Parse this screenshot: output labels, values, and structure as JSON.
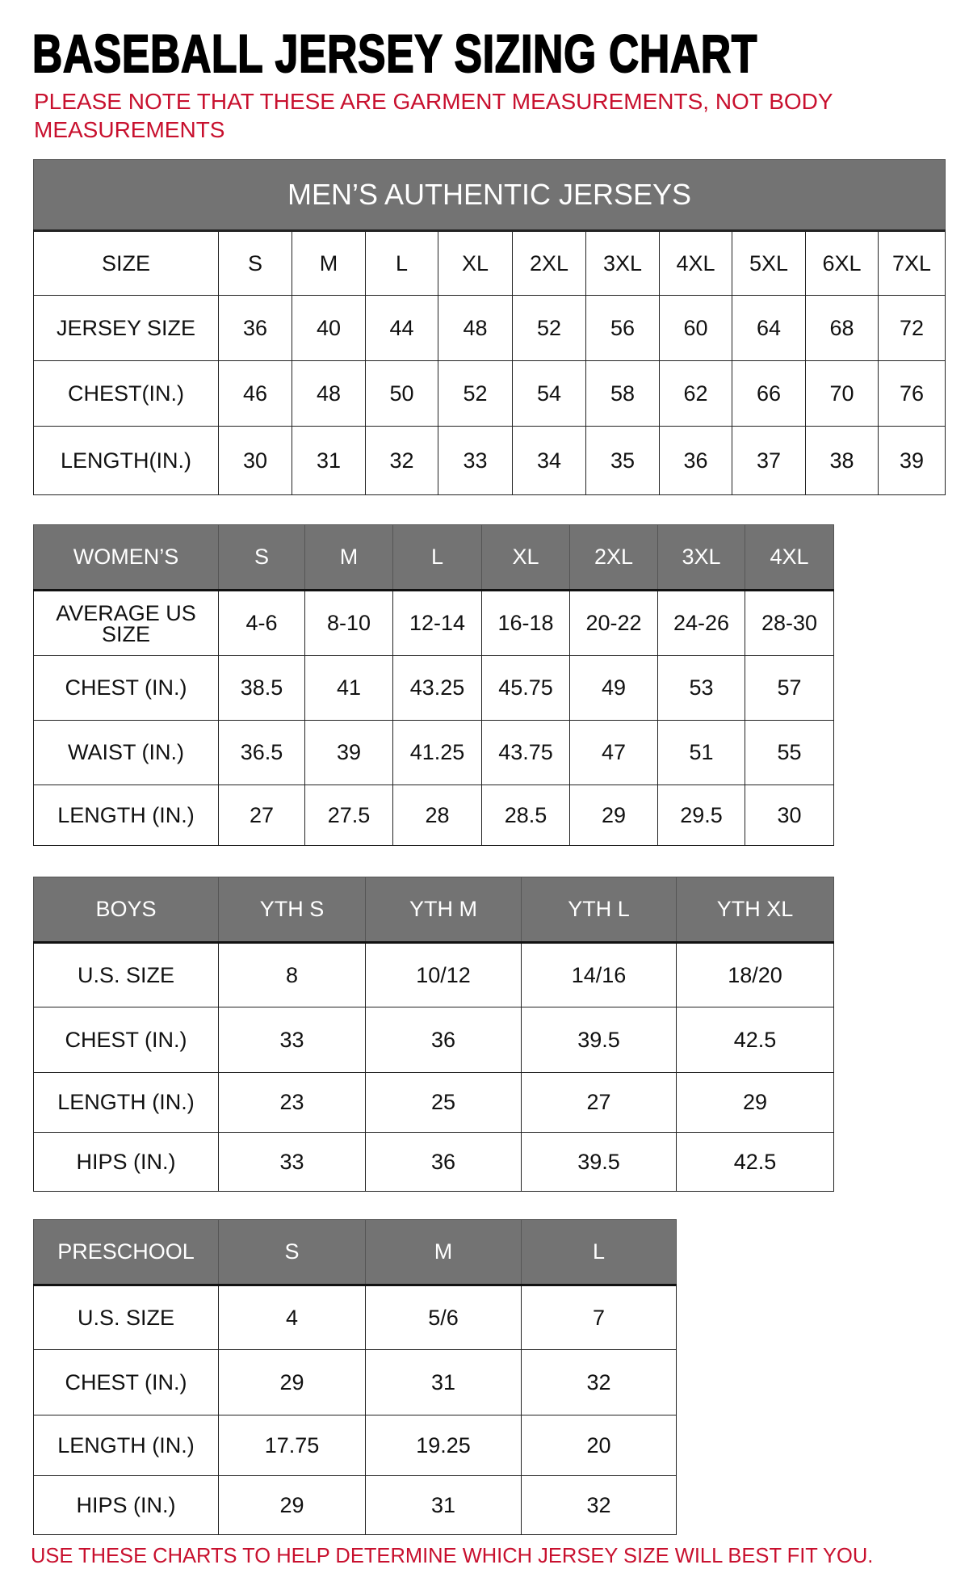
{
  "title": "BASEBALL JERSEY SIZING CHART",
  "note": "PLEASE NOTE THAT THESE ARE GARMENT MEASUREMENTS, NOT BODY MEASUREMENTS",
  "footer": "USE THESE CHARTS TO HELP DETERMINE WHICH JERSEY SIZE WILL BEST FIT YOU.",
  "colors": {
    "header_gray": "#737373",
    "note_red": "#c8102e"
  },
  "tables": [
    {
      "id": "mens",
      "banner": "MEN’S AUTHENTIC JERSEYS",
      "header": [
        "SIZE",
        "S",
        "M",
        "L",
        "XL",
        "2XL",
        "3XL",
        "4XL",
        "5XL",
        "6XL",
        "7XL"
      ],
      "rows": [
        [
          "JERSEY SIZE",
          "36",
          "40",
          "44",
          "48",
          "52",
          "56",
          "60",
          "64",
          "68",
          "72"
        ],
        [
          "CHEST(IN.)",
          "46",
          "48",
          "50",
          "52",
          "54",
          "58",
          "62",
          "66",
          "70",
          "76"
        ],
        [
          "LENGTH(IN.)",
          "30",
          "31",
          "32",
          "33",
          "34",
          "35",
          "36",
          "37",
          "38",
          "39"
        ]
      ]
    },
    {
      "id": "womens",
      "header": [
        "WOMEN’S",
        "S",
        "M",
        "L",
        "XL",
        "2XL",
        "3XL",
        "4XL"
      ],
      "rows": [
        [
          "AVERAGE US SIZE",
          "4-6",
          "8-10",
          "12-14",
          "16-18",
          "20-22",
          "24-26",
          "28-30"
        ],
        [
          "CHEST (IN.)",
          "38.5",
          "41",
          "43.25",
          "45.75",
          "49",
          "53",
          "57"
        ],
        [
          "WAIST (IN.)",
          "36.5",
          "39",
          "41.25",
          "43.75",
          "47",
          "51",
          "55"
        ],
        [
          "LENGTH (IN.)",
          "27",
          "27.5",
          "28",
          "28.5",
          "29",
          "29.5",
          "30"
        ]
      ]
    },
    {
      "id": "boys",
      "header": [
        "BOYS",
        "YTH S",
        "YTH M",
        "YTH L",
        "YTH XL"
      ],
      "rows": [
        [
          "U.S. SIZE",
          "8",
          "10/12",
          "14/16",
          "18/20"
        ],
        [
          "CHEST (IN.)",
          "33",
          "36",
          "39.5",
          "42.5"
        ],
        [
          "LENGTH (IN.)",
          "23",
          "25",
          "27",
          "29"
        ],
        [
          "HIPS (IN.)",
          "33",
          "36",
          "39.5",
          "42.5"
        ]
      ]
    },
    {
      "id": "preschool",
      "header": [
        "PRESCHOOL",
        "S",
        "M",
        "L"
      ],
      "rows": [
        [
          "U.S. SIZE",
          "4",
          "5/6",
          "7"
        ],
        [
          "CHEST (IN.)",
          "29",
          "31",
          "32"
        ],
        [
          "LENGTH (IN.)",
          "17.75",
          "19.25",
          "20"
        ],
        [
          "HIPS (IN.)",
          "29",
          "31",
          "32"
        ]
      ]
    }
  ]
}
